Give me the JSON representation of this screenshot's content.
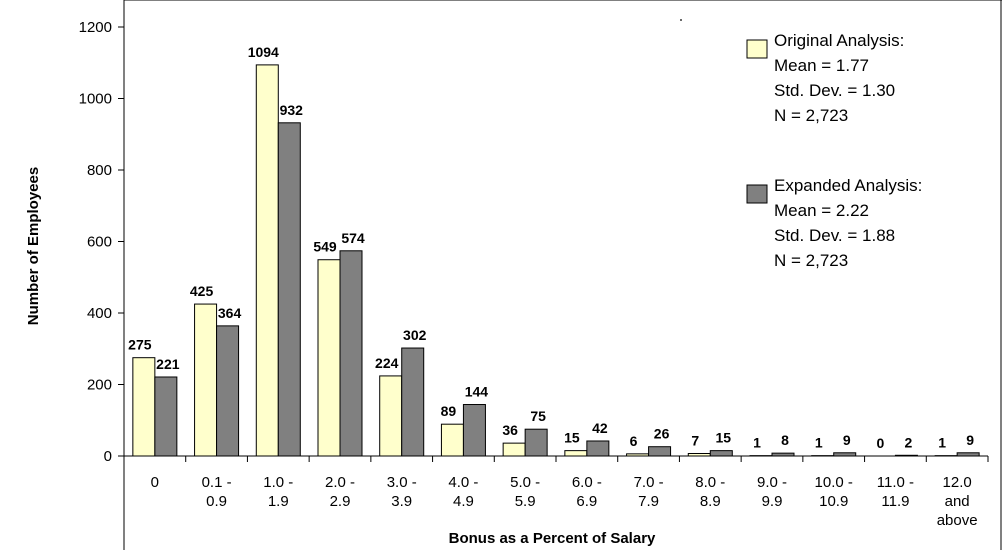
{
  "chart_data": {
    "type": "bar",
    "xlabel": "Bonus as a Percent of Salary",
    "ylabel": "Number of Employees",
    "ylim": [
      0,
      1200
    ],
    "yticks": [
      0,
      200,
      400,
      600,
      800,
      1000,
      1200
    ],
    "grid": false,
    "legend_position": "top-right",
    "categories": [
      [
        "0"
      ],
      [
        "0.1 -",
        "0.9"
      ],
      [
        "1.0 -",
        "1.9"
      ],
      [
        "2.0 -",
        "2.9"
      ],
      [
        "3.0 -",
        "3.9"
      ],
      [
        "4.0 -",
        "4.9"
      ],
      [
        "5.0 -",
        "5.9"
      ],
      [
        "6.0 -",
        "6.9"
      ],
      [
        "7.0 -",
        "7.9"
      ],
      [
        "8.0 -",
        "8.9"
      ],
      [
        "9.0 -",
        "9.9"
      ],
      [
        "10.0 -",
        "10.9"
      ],
      [
        "11.0 -",
        "11.9"
      ],
      [
        "12.0",
        "and",
        "above"
      ]
    ],
    "series": [
      {
        "name": "Original Analysis:",
        "color": "#FFFFCC",
        "stats": [
          "Mean = 1.77",
          "Std. Dev. = 1.30",
          "N = 2,723"
        ],
        "values": [
          275,
          425,
          1094,
          549,
          224,
          89,
          36,
          15,
          6,
          7,
          1,
          1,
          0,
          1
        ]
      },
      {
        "name": "Expanded Analysis:",
        "color": "#808080",
        "stats": [
          "Mean = 2.22",
          "Std. Dev. = 1.88",
          "N = 2,723"
        ],
        "values": [
          221,
          364,
          932,
          574,
          302,
          144,
          75,
          42,
          26,
          15,
          8,
          9,
          2,
          9
        ]
      }
    ]
  }
}
